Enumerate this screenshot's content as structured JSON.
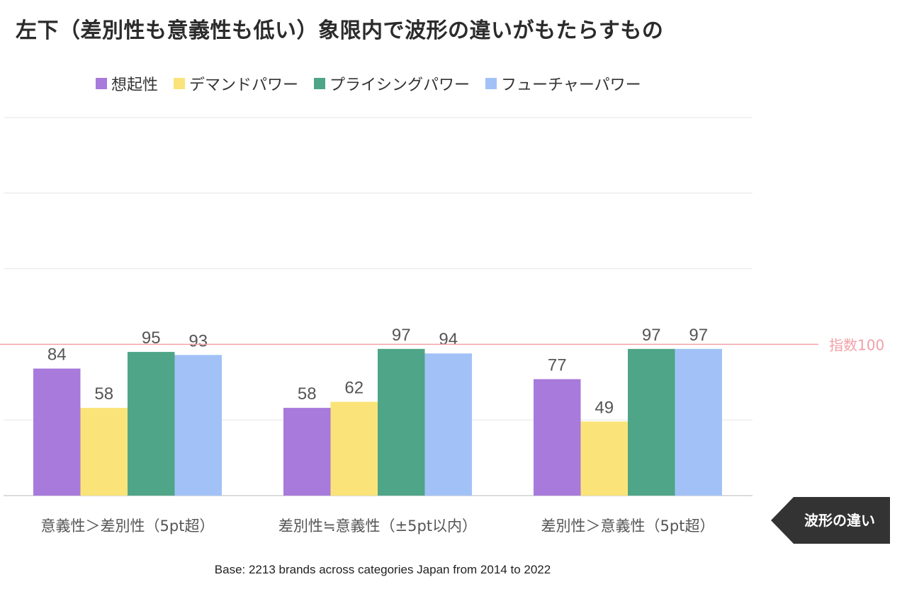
{
  "title": "左下（差別性も意義性も低い）象限内で波形の違いがもたらすもの",
  "legend": [
    {
      "label": "想起性",
      "color": "#A77ADB",
      "icon": "square-swatch"
    },
    {
      "label": "デマンドパワー",
      "color": "#FAE479",
      "icon": "square-swatch"
    },
    {
      "label": "プライシングパワー",
      "color": "#4FA587",
      "icon": "square-swatch"
    },
    {
      "label": "フューチャーパワー",
      "color": "#A2C2F7",
      "icon": "square-swatch"
    }
  ],
  "chart_data": {
    "type": "bar",
    "categories": [
      "意義性＞差別性（5pt超）",
      "差別性≒意義性（±5pt以内）",
      "差別性＞意義性（5pt超）"
    ],
    "series": [
      {
        "name": "想起性",
        "color": "#A77ADB",
        "values": [
          84,
          58,
          77
        ]
      },
      {
        "name": "デマンドパワー",
        "color": "#FAE479",
        "values": [
          58,
          62,
          49
        ]
      },
      {
        "name": "プライシングパワー",
        "color": "#4FA587",
        "values": [
          95,
          97,
          97
        ]
      },
      {
        "name": "フューチャーパワー",
        "color": "#A2C2F7",
        "values": [
          93,
          94,
          97
        ]
      }
    ],
    "ylim": [
      0,
      250
    ],
    "gridlines": [
      0,
      50,
      150,
      200,
      250
    ],
    "reference_line": {
      "value": 100,
      "label": "指数100",
      "color": "#F2A0A8"
    },
    "xlabel": "",
    "ylabel": "",
    "grid": true
  },
  "annotation": {
    "label": "波形の違い",
    "color": "#333333",
    "icon": "left-arrow-icon"
  },
  "footer": "Base: 2213 brands across categories Japan from 2014 to 2022"
}
